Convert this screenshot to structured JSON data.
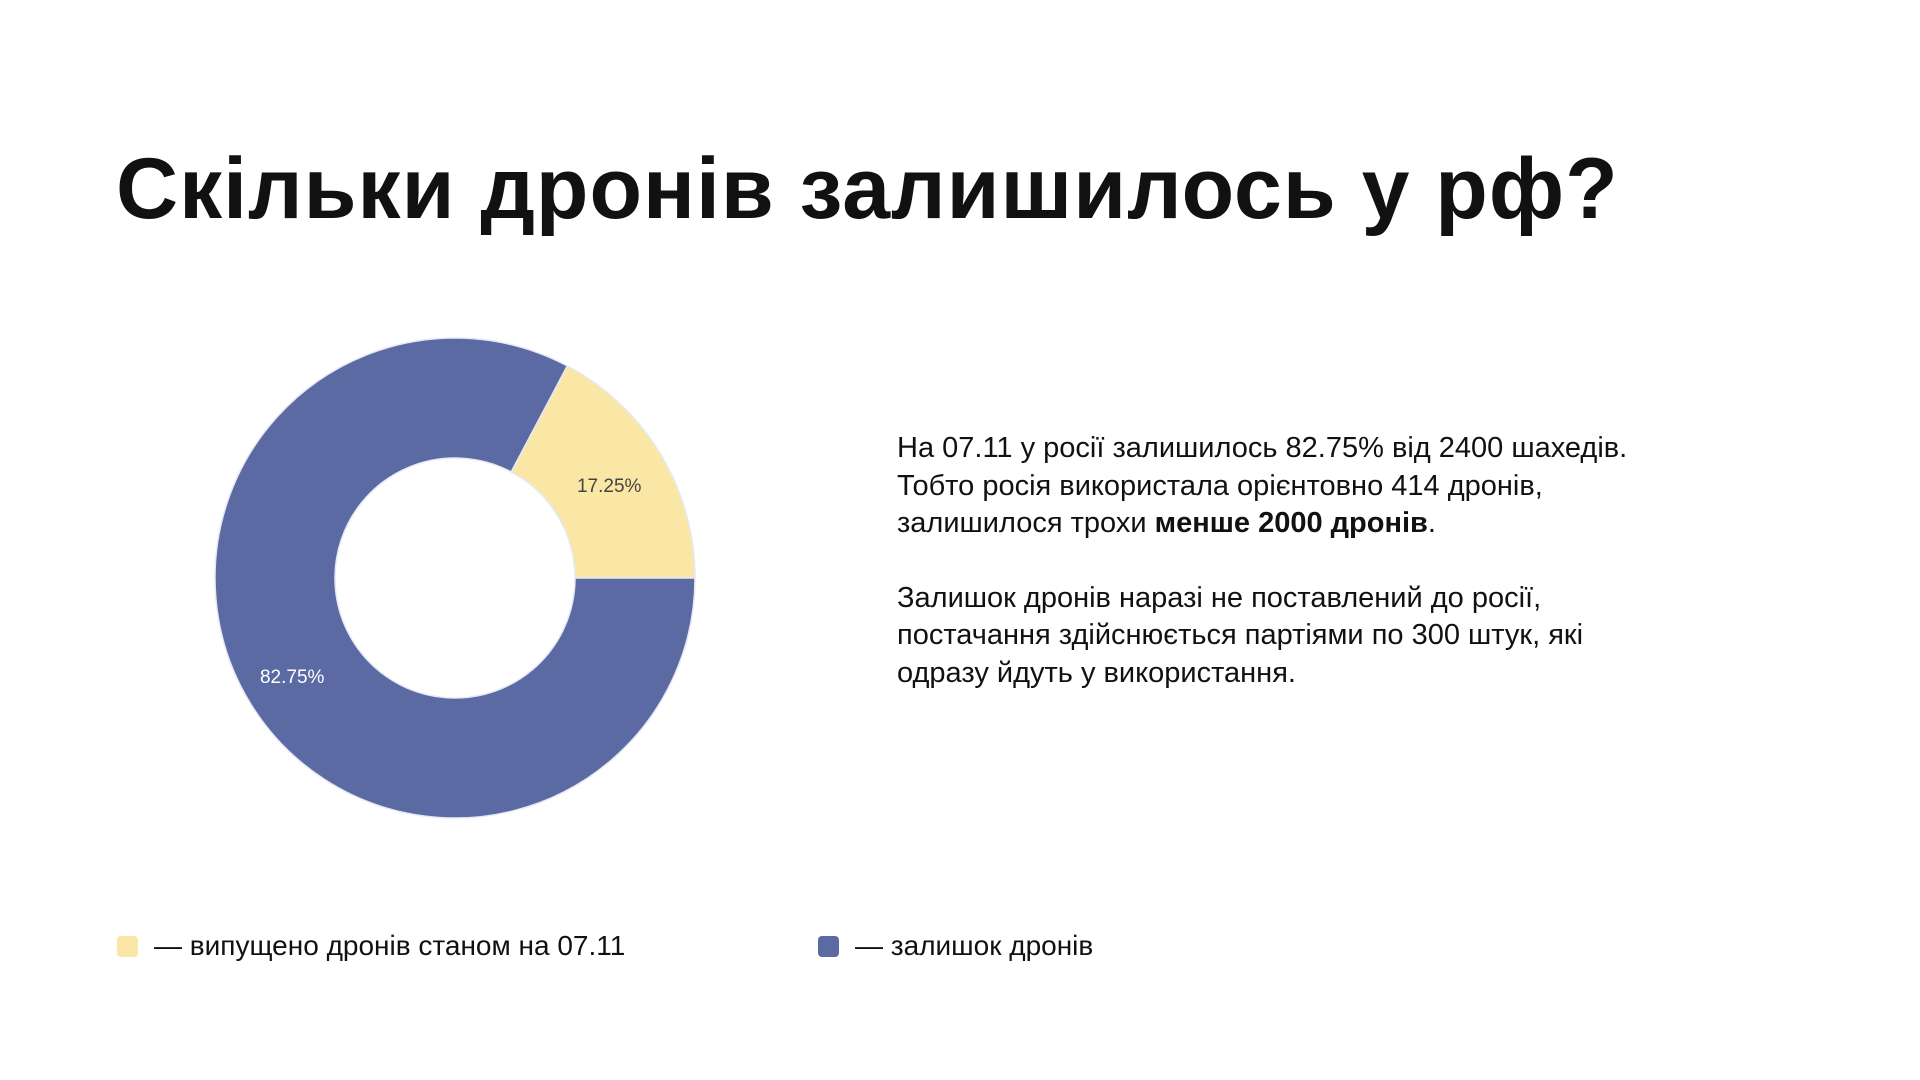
{
  "title": "Скільки дронів залишилось у рф?",
  "paragraph1": {
    "line1": "На 07.11 у росії залишилось 82.75% від 2400 шахедів.",
    "line2": "Тобто росія використала орієнтовно 414 дронів,",
    "line3_before": "залишилося трохи ",
    "line3_bold": "менше 2000 дронів",
    "line3_after": "."
  },
  "paragraph2": {
    "line1": "Залишок дронів наразі не поставлений до росії,",
    "line2": "постачання здійснюється партіями по 300 штук, які",
    "line3": "одразу йдуть у використання."
  },
  "chart_data": {
    "type": "pie",
    "donut": true,
    "slices": [
      {
        "name": "— випущено дронів станом на 07.11",
        "value": 17.25,
        "label": "17.25%",
        "color": "#FAE7A5",
        "label_color": "#444444"
      },
      {
        "name": "— залишок дронів",
        "value": 82.75,
        "label": "82.75%",
        "color": "#5B6AA3",
        "label_color": "#FFFFFF"
      }
    ],
    "legend_placement": "bottom"
  }
}
